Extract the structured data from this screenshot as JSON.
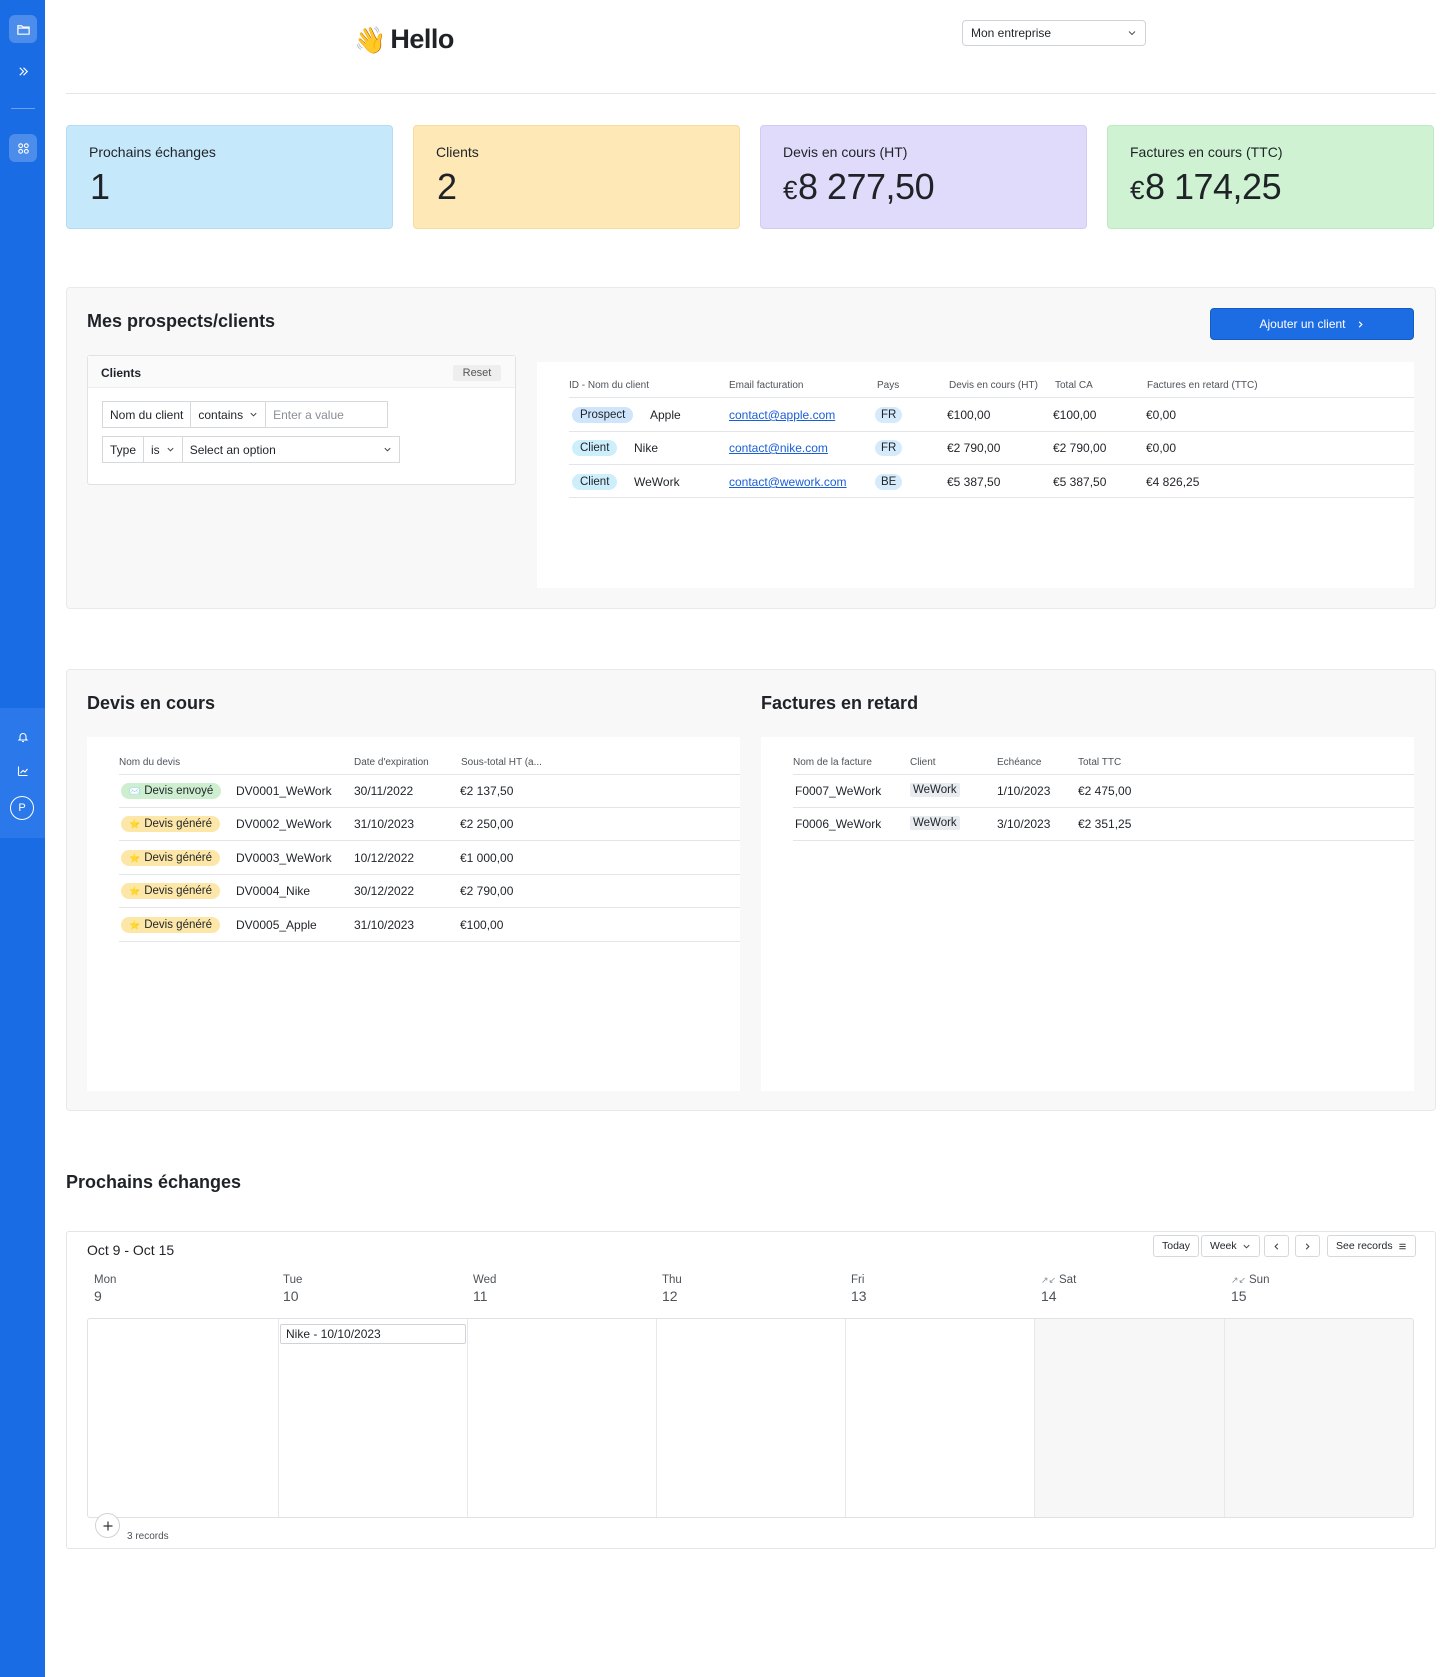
{
  "header": {
    "greeting_emoji": "👋",
    "greeting": "Hello",
    "company_select": "Mon entreprise"
  },
  "kpis": [
    {
      "label": "Prochains échanges",
      "currency": "",
      "value": "1"
    },
    {
      "label": "Clients",
      "currency": "",
      "value": "2"
    },
    {
      "label": "Devis en cours (HT)",
      "currency": "€",
      "value": "8 277,50"
    },
    {
      "label": "Factures en cours (TTC)",
      "currency": "€",
      "value": "8 174,25"
    }
  ],
  "clients_section": {
    "title": "Mes prospects/clients",
    "add_button": "Ajouter un client",
    "filter": {
      "title": "Clients",
      "reset": "Reset",
      "row1": {
        "field": "Nom du client",
        "operator": "contains",
        "placeholder": "Enter a value"
      },
      "row2": {
        "field": "Type",
        "operator": "is",
        "placeholder": "Select an option"
      }
    },
    "columns": [
      "ID - Nom du client",
      "Email facturation",
      "Pays",
      "Devis en cours (HT)",
      "Total CA",
      "Factures en retard (TTC)"
    ],
    "rows": [
      {
        "type": "Prospect",
        "name": "Apple",
        "email": "contact@apple.com",
        "country": "FR",
        "devis": "€100,00",
        "ca": "€100,00",
        "retard": "€0,00"
      },
      {
        "type": "Client",
        "name": "Nike",
        "email": "contact@nike.com",
        "country": "FR",
        "devis": "€2 790,00",
        "ca": "€2 790,00",
        "retard": "€0,00"
      },
      {
        "type": "Client",
        "name": "WeWork",
        "email": "contact@wework.com",
        "country": "BE",
        "devis": "€5 387,50",
        "ca": "€5 387,50",
        "retard": "€4 826,25"
      }
    ]
  },
  "devis_section": {
    "title": "Devis en cours",
    "columns": [
      "Nom du devis",
      "Date d'expiration",
      "Sous-total HT (a..."
    ],
    "rows": [
      {
        "status": "Devis envoyé",
        "status_icon": "✉️",
        "kind": "sent",
        "name": "DV0001_WeWork",
        "date": "30/11/2022",
        "total": "€2 137,50"
      },
      {
        "status": "Devis généré",
        "status_icon": "⭐",
        "kind": "gen",
        "name": "DV0002_WeWork",
        "date": "31/10/2023",
        "total": "€2 250,00"
      },
      {
        "status": "Devis généré",
        "status_icon": "⭐",
        "kind": "gen",
        "name": "DV0003_WeWork",
        "date": "10/12/2022",
        "total": "€1 000,00"
      },
      {
        "status": "Devis généré",
        "status_icon": "⭐",
        "kind": "gen",
        "name": "DV0004_Nike",
        "date": "30/12/2022",
        "total": "€2 790,00"
      },
      {
        "status": "Devis généré",
        "status_icon": "⭐",
        "kind": "gen",
        "name": "DV0005_Apple",
        "date": "31/10/2023",
        "total": "€100,00"
      }
    ]
  },
  "factures_section": {
    "title": "Factures en retard",
    "columns": [
      "Nom de la facture",
      "Client",
      "Echéance",
      "Total TTC"
    ],
    "rows": [
      {
        "name": "F0007_WeWork",
        "client": "WeWork",
        "due": "1/10/2023",
        "total": "€2 475,00"
      },
      {
        "name": "F0006_WeWork",
        "client": "WeWork",
        "due": "3/10/2023",
        "total": "€2 351,25"
      }
    ]
  },
  "calendar_section": {
    "title": "Prochains échanges",
    "range": "Oct 9 - Oct 15",
    "buttons": {
      "today": "Today",
      "view": "Week",
      "see_records": "See records"
    },
    "days": [
      {
        "name": "Mon",
        "num": "9"
      },
      {
        "name": "Tue",
        "num": "10"
      },
      {
        "name": "Wed",
        "num": "11"
      },
      {
        "name": "Thu",
        "num": "12"
      },
      {
        "name": "Fri",
        "num": "13"
      },
      {
        "name": "Sat",
        "num": "14"
      },
      {
        "name": "Sun",
        "num": "15"
      }
    ],
    "event": "Nike - 10/10/2023",
    "records": "3 records"
  },
  "colors": {
    "sidebar": "#1a6ce4",
    "primary_button": "#1c6de4",
    "kpi_blue": "#c6e8fb",
    "kpi_yellow": "#fde8b6",
    "kpi_purple": "#e0dbfa",
    "kpi_green": "#cff3d2"
  },
  "icons": {
    "sidebar": [
      "folder-icon",
      "expand-icon",
      "apps-icon",
      "bell-icon",
      "chart-icon",
      "avatar"
    ]
  }
}
